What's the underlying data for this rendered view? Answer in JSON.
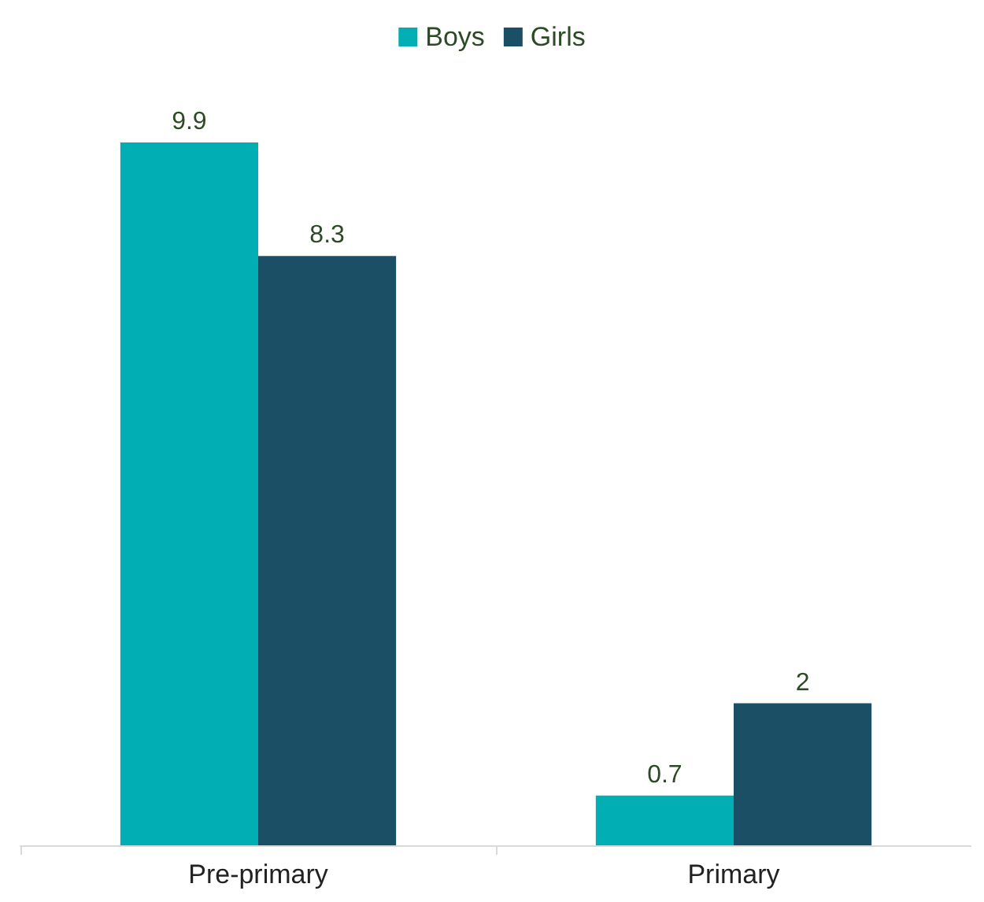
{
  "chart_data": {
    "type": "bar",
    "categories": [
      "Pre-primary",
      "Primary"
    ],
    "series": [
      {
        "name": "Boys",
        "color": "#00aeb3",
        "values": [
          9.9,
          0.7
        ]
      },
      {
        "name": "Girls",
        "color": "#1a4f66",
        "values": [
          8.3,
          2
        ]
      }
    ],
    "data_labels": true,
    "legend": "top"
  }
}
